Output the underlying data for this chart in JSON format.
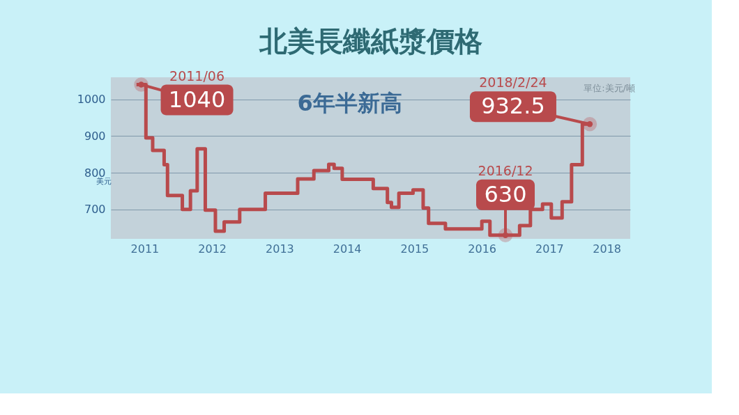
{
  "chart_data": {
    "type": "step",
    "title": "北美長纖紙漿價格",
    "ylabel": "美元",
    "x": [
      2010.88,
      2011.02,
      2011.12,
      2011.29,
      2011.34,
      2011.56,
      2011.68,
      2011.78,
      2011.9,
      2012.05,
      2012.18,
      2012.41,
      2012.79,
      2013.27,
      2013.51,
      2013.73,
      2013.81,
      2013.93,
      2014.39,
      2014.6,
      2014.66,
      2014.77,
      2014.98,
      2015.13,
      2015.21,
      2015.46,
      2016.0,
      2016.12,
      2016.56,
      2016.72,
      2016.9,
      2017.03,
      2017.19,
      2017.33,
      2017.49,
      2017.6
    ],
    "series": [
      {
        "color": "#b84a4c",
        "values": [
          1040,
          895,
          861,
          822,
          738,
          700,
          751,
          865,
          698,
          641,
          666,
          700,
          744,
          783,
          806,
          823,
          812,
          782,
          757,
          719,
          706,
          744,
          753,
          704,
          662,
          647,
          668,
          630,
          656,
          700,
          715,
          677,
          721,
          822,
          932.5,
          932.5
        ]
      }
    ],
    "xlim": [
      2010.5,
      2018.2
    ],
    "xticks": [
      2011,
      2012,
      2013,
      2014,
      2015,
      2016,
      2017,
      {
        "value": 2017.85,
        "label": "2018"
      }
    ],
    "ylim": [
      620,
      1060
    ],
    "yticks": [
      700,
      800,
      900,
      1000
    ],
    "grid": "y",
    "marker": "none",
    "line_style": "solid",
    "annotations": [
      {
        "text": "2011/06",
        "x": 2010.95,
        "y": 1040
      },
      {
        "text": "1040",
        "x": 2010.95,
        "y": 1040
      },
      {
        "text": "2018/2/24",
        "x": 2017.6,
        "y": 932.5
      },
      {
        "text": "932.5",
        "x": 2017.6,
        "y": 932.5
      },
      {
        "text": "2016/12",
        "x": 2016.35,
        "y": 630
      },
      {
        "text": "630",
        "x": 2016.35,
        "y": 630
      },
      "6年半新高",
      "單位:美元/噸"
    ]
  }
}
